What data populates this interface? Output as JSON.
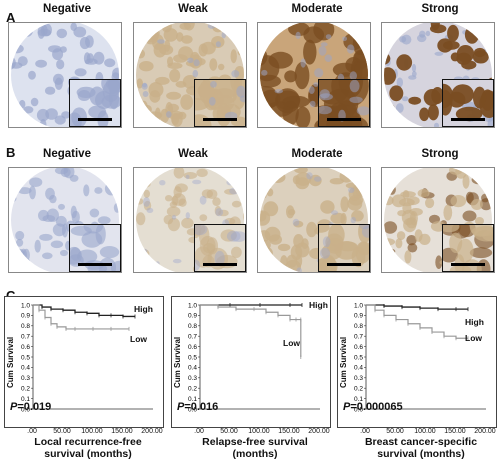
{
  "panels": {
    "a": {
      "label": "A",
      "grades": [
        "Negative",
        "Weak",
        "Moderate",
        "Strong"
      ]
    },
    "b": {
      "label": "B",
      "grades": [
        "Negative",
        "Weak",
        "Moderate",
        "Strong"
      ]
    },
    "c": {
      "label": "C"
    }
  },
  "colors": {
    "hematoxylin": "#9aa6cc",
    "dab_light": "#c9b08a",
    "dab_dark": "#7a4d22",
    "high_line": "#222222",
    "low_line": "#999999"
  },
  "chart_data": [
    {
      "type": "line",
      "title": "",
      "xlabel": "Local recurrence-free survival (months)",
      "ylabel": "Cum Survival",
      "xlim": [
        0,
        200
      ],
      "ylim": [
        0,
        1.0
      ],
      "xticks": [
        ".00",
        "50.00",
        "100.00",
        "150.00",
        "200.00"
      ],
      "yticks": [
        "0.0",
        "0.1",
        "0.2",
        "0.3",
        "0.4",
        "0.5",
        "0.6",
        "0.7",
        "0.8",
        "0.9",
        "1.0"
      ],
      "p_value": "=0.019",
      "p_label": "P",
      "series": [
        {
          "name": "High",
          "x": [
            0,
            15,
            30,
            50,
            70,
            90,
            110,
            130,
            150,
            170
          ],
          "y": [
            1.0,
            0.98,
            0.96,
            0.95,
            0.93,
            0.92,
            0.9,
            0.9,
            0.89,
            0.89
          ]
        },
        {
          "name": "Low",
          "x": [
            0,
            10,
            20,
            30,
            40,
            55,
            70,
            100,
            130,
            160
          ],
          "y": [
            1.0,
            0.95,
            0.88,
            0.82,
            0.79,
            0.77,
            0.77,
            0.77,
            0.77,
            0.77
          ]
        }
      ]
    },
    {
      "type": "line",
      "title": "",
      "xlabel": "Relapse-free survival (months)",
      "ylabel": "Cum Survival",
      "xlim": [
        0,
        200
      ],
      "ylim": [
        0,
        1.0
      ],
      "xticks": [
        ".00",
        "50.00",
        "100.00",
        "150.00",
        "200.00"
      ],
      "yticks": [
        "0.0",
        "0.1",
        "0.2",
        "0.3",
        "0.4",
        "0.5",
        "0.6",
        "0.7",
        "0.8",
        "0.9",
        "1.0"
      ],
      "p_value": "=0.016",
      "p_label": "P",
      "series": [
        {
          "name": "High",
          "x": [
            0,
            50,
            100,
            150,
            170
          ],
          "y": [
            1.0,
            1.0,
            1.0,
            1.0,
            1.0
          ]
        },
        {
          "name": "Low",
          "x": [
            0,
            30,
            60,
            90,
            110,
            130,
            150,
            160,
            168,
            168
          ],
          "y": [
            1.0,
            0.98,
            0.96,
            0.96,
            0.93,
            0.9,
            0.86,
            0.86,
            0.86,
            0.5
          ]
        }
      ]
    },
    {
      "type": "line",
      "title": "",
      "xlabel": "Breast cancer-specific survival (months)",
      "ylabel": "Cum Survival",
      "xlim": [
        0,
        200
      ],
      "ylim": [
        0,
        1.0
      ],
      "xticks": [
        ".00",
        "50.00",
        "100.00",
        "150.00",
        "200.00"
      ],
      "yticks": [
        "0.0",
        "0.1",
        "0.2",
        "0.3",
        "0.4",
        "0.5",
        "0.6",
        "0.7",
        "0.8",
        "0.9",
        "1.0"
      ],
      "p_value": "=0.000065",
      "p_label": "P",
      "series": [
        {
          "name": "High",
          "x": [
            0,
            30,
            60,
            90,
            120,
            150,
            170
          ],
          "y": [
            1.0,
            0.99,
            0.98,
            0.97,
            0.96,
            0.96,
            0.96
          ]
        },
        {
          "name": "Low",
          "x": [
            0,
            15,
            30,
            50,
            70,
            90,
            110,
            130,
            150,
            170
          ],
          "y": [
            1.0,
            0.95,
            0.9,
            0.86,
            0.82,
            0.78,
            0.74,
            0.7,
            0.68,
            0.68
          ]
        }
      ]
    }
  ]
}
